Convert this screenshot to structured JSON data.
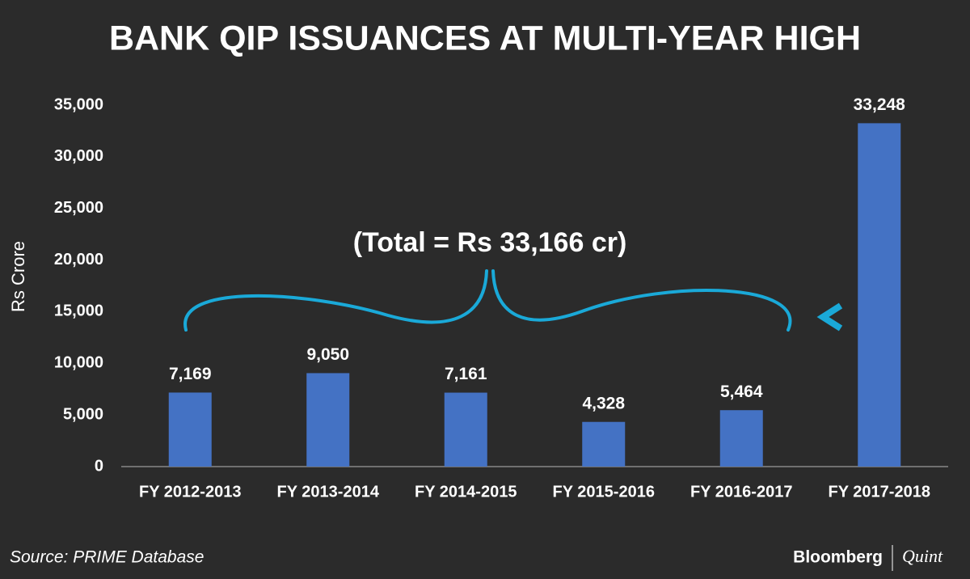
{
  "chart_data": {
    "type": "bar",
    "title": "BANK QIP ISSUANCES AT MULTI-YEAR HIGH",
    "y_label": "Rs Crore",
    "annotation": "(Total = Rs 33,166 cr)",
    "source": "Source: PRIME Database",
    "brand": [
      "Bloomberg",
      "Quint"
    ],
    "categories": [
      "FY 2012-2013",
      "FY 2013-2014",
      "FY 2014-2015",
      "FY 2015-2016",
      "FY 2016-2017",
      "FY 2017-2018"
    ],
    "values": [
      7169,
      9050,
      7161,
      4328,
      5464,
      33248
    ],
    "value_labels": [
      "7,169",
      "9,050",
      "7,161",
      "4,328",
      "5,464",
      "33,248"
    ],
    "color": "#4472c4",
    "ylim": [
      0,
      35000
    ],
    "yticks": [
      0,
      {
        "value": 5000,
        "label": "5,000"
      },
      {
        "value": 10000,
        "label": "10,000"
      },
      {
        "value": 15000,
        "label": "15,000"
      },
      {
        "value": 20000,
        "label": "20,000"
      },
      {
        "value": 25000,
        "label": "25,000"
      },
      {
        "value": 30000,
        "label": "30,000"
      },
      {
        "value": 35000,
        "label": "35,000"
      }
    ],
    "grid": false
  }
}
